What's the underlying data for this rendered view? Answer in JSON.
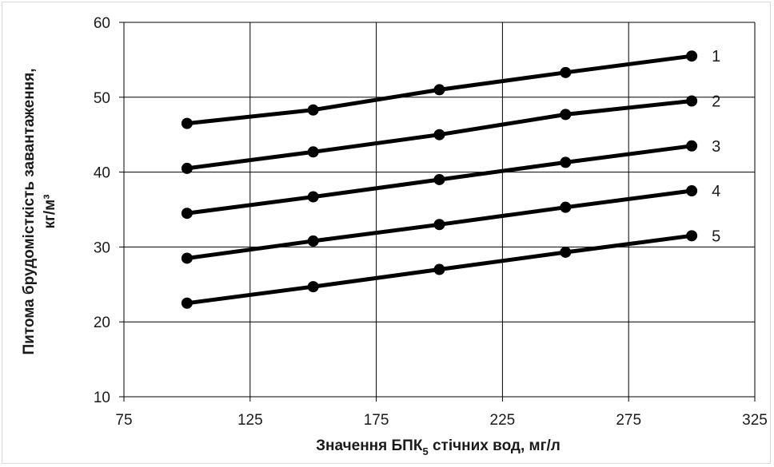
{
  "chart_data": {
    "type": "line",
    "xlabel": "Значення БПК₅ стічних вод, мг/л",
    "xlabel_main": "Значення БПК",
    "xlabel_sub": "5",
    "xlabel_rest": " стічних вод, мг/л",
    "ylabel_line1": "Питома брудомісткість завантаження,",
    "ylabel_line2": "кг/м³",
    "xlim": [
      75,
      325
    ],
    "ylim": [
      10,
      60
    ],
    "xticks": [
      75,
      125,
      175,
      225,
      275,
      325
    ],
    "yticks": [
      10,
      20,
      30,
      40,
      50,
      60
    ],
    "grid": true,
    "line_color": "#000000",
    "x": [
      100,
      150,
      200,
      250,
      300
    ],
    "series": [
      {
        "name": "1",
        "values": [
          46.5,
          48.3,
          51.0,
          53.3,
          55.5
        ]
      },
      {
        "name": "2",
        "values": [
          40.5,
          42.7,
          45.0,
          47.7,
          49.5
        ]
      },
      {
        "name": "3",
        "values": [
          34.5,
          36.7,
          39.0,
          41.3,
          43.5
        ]
      },
      {
        "name": "4",
        "values": [
          28.5,
          30.8,
          33.0,
          35.3,
          37.5
        ]
      },
      {
        "name": "5",
        "values": [
          22.5,
          24.7,
          27.0,
          29.3,
          31.5
        ]
      }
    ]
  }
}
